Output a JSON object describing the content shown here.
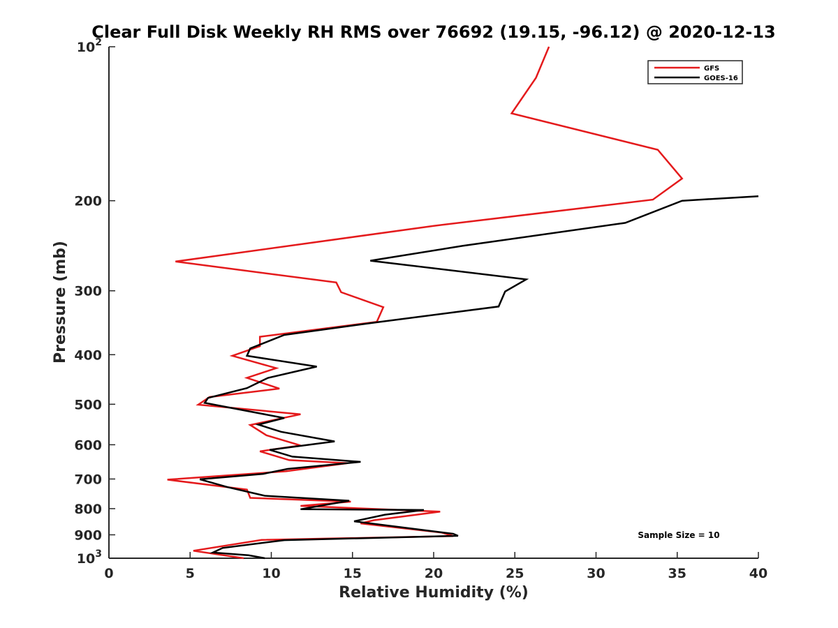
{
  "chart_data": {
    "type": "line",
    "title": "Clear Full Disk Weekly RH RMS over 76692 (19.15, -96.12) @ 2020-12-13",
    "xlabel": "Relative Humidity (%)",
    "ylabel": "Pressure (mb)",
    "xlim": [
      0,
      40
    ],
    "ylim": [
      100,
      1000
    ],
    "y_scale": "log",
    "y_reversed": true,
    "x_ticks": [
      0,
      5,
      10,
      15,
      20,
      25,
      30,
      35,
      40
    ],
    "x_tick_labels": [
      "0",
      "5",
      "10",
      "15",
      "20",
      "25",
      "30",
      "35",
      "40"
    ],
    "y_ticks": [
      100,
      200,
      300,
      400,
      500,
      600,
      700,
      800,
      900,
      1000
    ],
    "y_tick_labels": [
      {
        "base": "10",
        "exp": "2"
      },
      {
        "base": "200",
        "exp": ""
      },
      {
        "base": "300",
        "exp": ""
      },
      {
        "base": "400",
        "exp": ""
      },
      {
        "base": "500",
        "exp": ""
      },
      {
        "base": "600",
        "exp": ""
      },
      {
        "base": "700",
        "exp": ""
      },
      {
        "base": "800",
        "exp": ""
      },
      {
        "base": "900",
        "exp": ""
      },
      {
        "base": "10",
        "exp": "3"
      }
    ],
    "legend_position": "top-right",
    "annotation": "Sample Size = 10",
    "series": [
      {
        "name": "GFS",
        "color": "#e41a1c",
        "points": [
          [
            27.1,
            100
          ],
          [
            26.3,
            115
          ],
          [
            24.8,
            135
          ],
          [
            33.8,
            159
          ],
          [
            35.3,
            181
          ],
          [
            33.5,
            199
          ],
          [
            20.0,
            224
          ],
          [
            4.1,
            263
          ],
          [
            14.0,
            289
          ],
          [
            14.3,
            302
          ],
          [
            16.9,
            323
          ],
          [
            16.5,
            345
          ],
          [
            9.3,
            369
          ],
          [
            9.3,
            385
          ],
          [
            7.6,
            402
          ],
          [
            10.3,
            425
          ],
          [
            8.5,
            444
          ],
          [
            10.5,
            466
          ],
          [
            6.2,
            484
          ],
          [
            5.5,
            501
          ],
          [
            11.8,
            523
          ],
          [
            8.7,
            549
          ],
          [
            9.7,
            575
          ],
          [
            11.8,
            602
          ],
          [
            9.3,
            618
          ],
          [
            11.1,
            643
          ],
          [
            14.7,
            652
          ],
          [
            10.9,
            676
          ],
          [
            3.6,
            702
          ],
          [
            8.5,
            734
          ],
          [
            8.7,
            762
          ],
          [
            14.9,
            775
          ],
          [
            11.8,
            790
          ],
          [
            20.4,
            811
          ],
          [
            16.3,
            843
          ],
          [
            15.5,
            855
          ],
          [
            20.5,
            891
          ],
          [
            21.2,
            905
          ],
          [
            9.4,
            921
          ],
          [
            5.2,
            967
          ],
          [
            8.3,
            1000
          ]
        ]
      },
      {
        "name": "GOES-16",
        "color": "#000000",
        "points": [
          [
            40.0,
            196
          ],
          [
            35.3,
            200
          ],
          [
            31.8,
            221
          ],
          [
            21.8,
            245
          ],
          [
            16.1,
            262
          ],
          [
            25.7,
            285
          ],
          [
            24.4,
            301
          ],
          [
            24.0,
            322
          ],
          [
            16.7,
            345
          ],
          [
            10.8,
            366
          ],
          [
            8.7,
            389
          ],
          [
            8.5,
            402
          ],
          [
            12.8,
            422
          ],
          [
            9.8,
            444
          ],
          [
            8.5,
            465
          ],
          [
            6.1,
            486
          ],
          [
            5.9,
            497
          ],
          [
            10.8,
            532
          ],
          [
            9.2,
            548
          ],
          [
            10.6,
            566
          ],
          [
            13.9,
            591
          ],
          [
            9.9,
            614
          ],
          [
            11.3,
            633
          ],
          [
            15.5,
            648
          ],
          [
            11.0,
            669
          ],
          [
            9.5,
            684
          ],
          [
            5.6,
            701
          ],
          [
            7.3,
            726
          ],
          [
            9.6,
            755
          ],
          [
            14.8,
            772
          ],
          [
            11.8,
            802
          ],
          [
            19.4,
            805
          ],
          [
            17.0,
            822
          ],
          [
            15.1,
            847
          ],
          [
            21.2,
            896
          ],
          [
            21.5,
            904
          ],
          [
            10.8,
            922
          ],
          [
            7.0,
            955
          ],
          [
            6.4,
            975
          ],
          [
            8.6,
            987
          ],
          [
            9.6,
            1000
          ]
        ]
      }
    ]
  }
}
